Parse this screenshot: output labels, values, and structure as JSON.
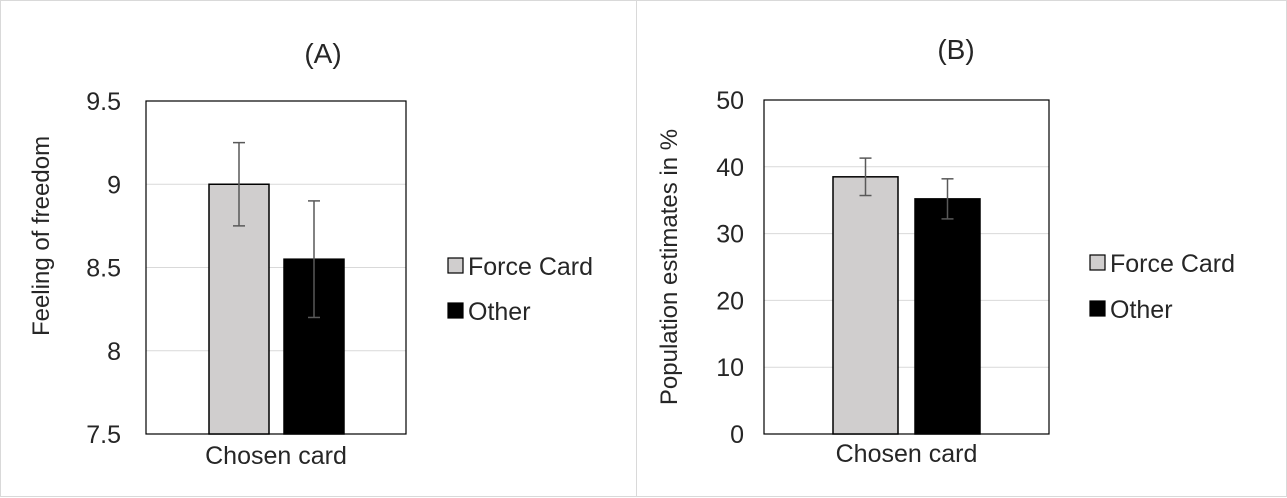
{
  "colors": {
    "force_card": "#d0cece",
    "other": "#000000",
    "error_bar": "#595959",
    "grid": "#d9d9d9"
  },
  "chart_data": [
    {
      "type": "bar",
      "title": "(A)",
      "ylabel": "Feeling of freedom",
      "xlabel": "",
      "categories": [
        "Chosen card"
      ],
      "ylim": [
        7.5,
        9.5
      ],
      "yticks": [
        "7.5",
        "8",
        "8.5",
        "9",
        "9.5"
      ],
      "ytick_values": [
        7.5,
        8,
        8.5,
        9,
        9.5
      ],
      "grid": true,
      "legend": "right",
      "series": [
        {
          "name": "Force Card",
          "values": [
            9.0
          ],
          "error": [
            0.25
          ]
        },
        {
          "name": "Other",
          "values": [
            8.55
          ],
          "error": [
            0.35
          ]
        }
      ]
    },
    {
      "type": "bar",
      "title": "(B)",
      "ylabel": "Population estimates in %",
      "xlabel": "",
      "categories": [
        "Chosen card"
      ],
      "ylim": [
        0,
        50
      ],
      "yticks": [
        "0",
        "10",
        "20",
        "30",
        "40",
        "50"
      ],
      "ytick_values": [
        0,
        10,
        20,
        30,
        40,
        50
      ],
      "grid": true,
      "legend": "right",
      "series": [
        {
          "name": "Force Card",
          "values": [
            38.5
          ],
          "error": [
            2.8
          ]
        },
        {
          "name": "Other",
          "values": [
            35.2
          ],
          "error": [
            3.0
          ]
        }
      ]
    }
  ]
}
